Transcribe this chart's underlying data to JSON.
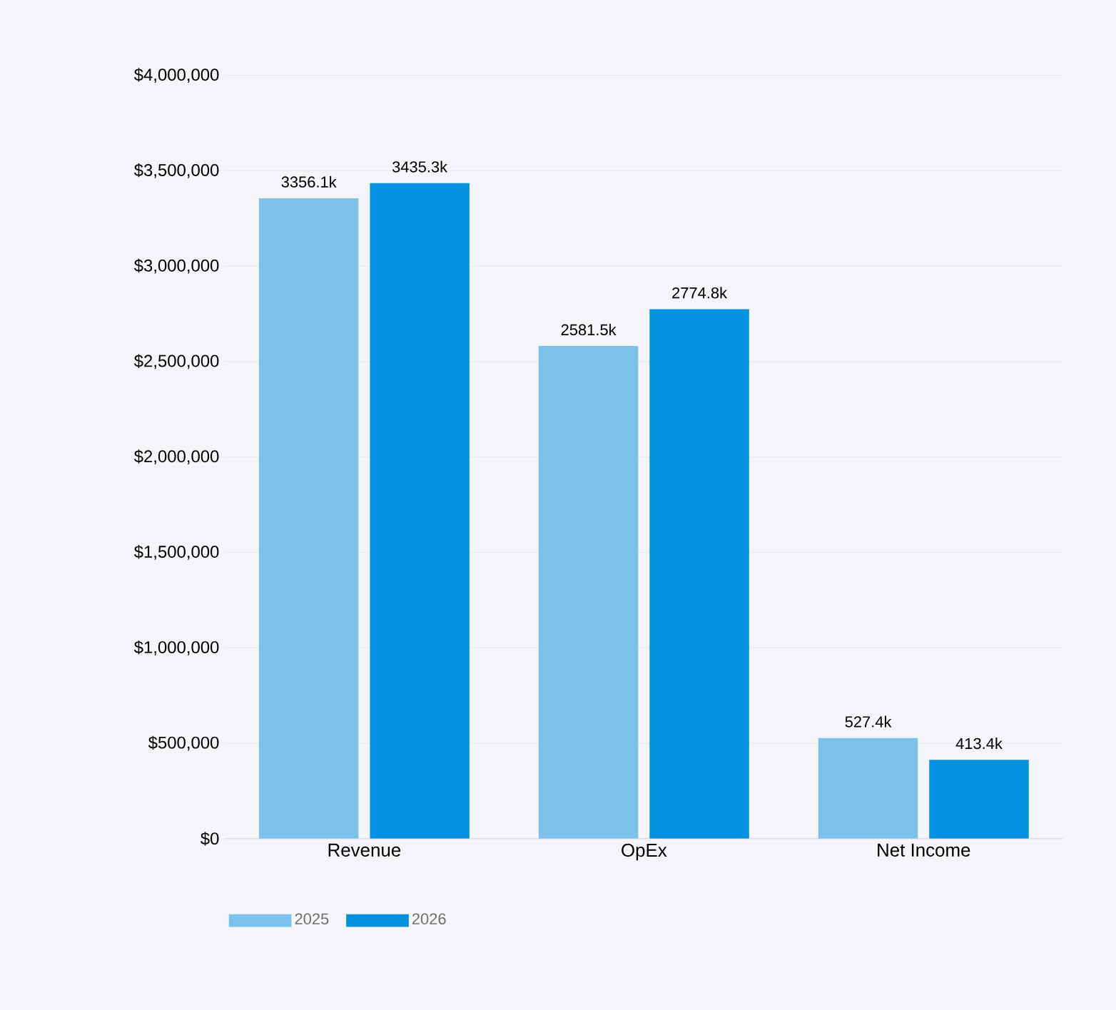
{
  "chart_data": {
    "type": "bar",
    "categories": [
      "Revenue",
      "OpEx",
      "Net Income"
    ],
    "series": [
      {
        "name": "2025",
        "color": "#7bc1ea",
        "values": [
          3356100,
          2581500,
          527400
        ],
        "value_labels": [
          "3356.1k",
          "2581.5k",
          "527.4k"
        ]
      },
      {
        "name": "2026",
        "color": "#0590e0",
        "values": [
          3435300,
          2774800,
          413400
        ],
        "value_labels": [
          "3435.3k",
          "2774.8k",
          "413.4k"
        ]
      }
    ],
    "ylim": [
      0,
      4000000
    ],
    "yticks": [
      {
        "value": 0,
        "label": "$0"
      },
      {
        "value": 500000,
        "label": "$500,000"
      },
      {
        "value": 1000000,
        "label": "$1,000,000"
      },
      {
        "value": 1500000,
        "label": "$1,500,000"
      },
      {
        "value": 2000000,
        "label": "$2,000,000"
      },
      {
        "value": 2500000,
        "label": "$2,500,000"
      },
      {
        "value": 3000000,
        "label": "$3,000,000"
      },
      {
        "value": 3500000,
        "label": "$3,500,000"
      },
      {
        "value": 4000000,
        "label": "$4,000,000"
      }
    ],
    "grid": "y",
    "legend": "bottom left"
  }
}
